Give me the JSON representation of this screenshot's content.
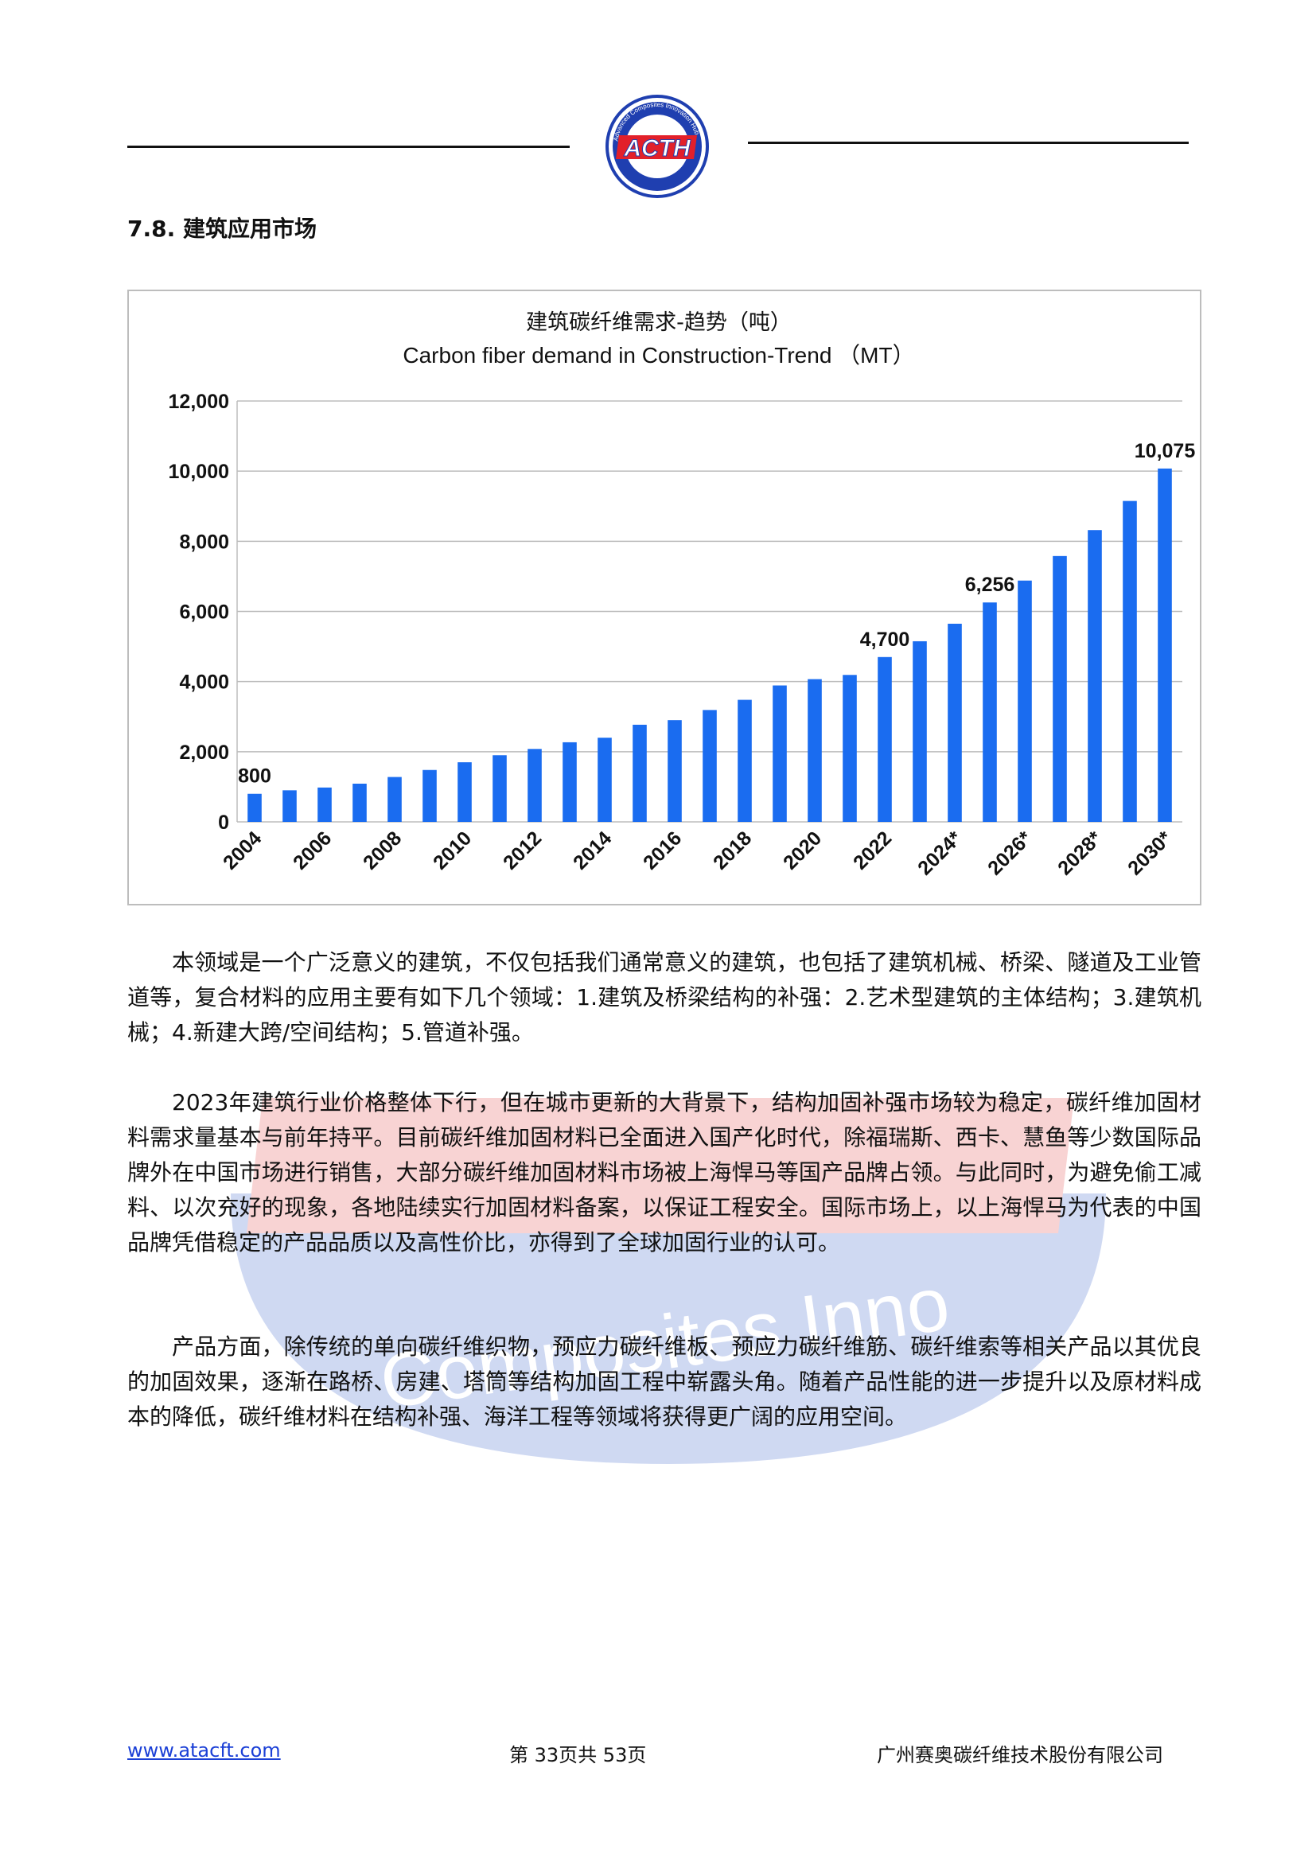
{
  "header": {
    "logo_text": "ACTH",
    "logo_ring_text": "Advanced Composites Innovation Hub",
    "watermark_text": "Composites Inno"
  },
  "section": {
    "title": "7.8.  建筑应用市场"
  },
  "chart_data": {
    "type": "bar",
    "title": "建筑碳纤维需求-趋势（吨）",
    "subtitle": "Carbon fiber demand in Construction-Trend  （MT）",
    "x": [
      "2004",
      "2005",
      "2006",
      "2007",
      "2008",
      "2009",
      "2010",
      "2011",
      "2012",
      "2013",
      "2014",
      "2015",
      "2016",
      "2017",
      "2018",
      "2019",
      "2020",
      "2021",
      "2022",
      "2023",
      "2024*",
      "2025*",
      "2026*",
      "2027*",
      "2028*",
      "2029*",
      "2030*"
    ],
    "x_tick_labels": [
      "2004",
      "2006",
      "2008",
      "2010",
      "2012",
      "2014",
      "2016",
      "2018",
      "2020",
      "2022",
      "2024*",
      "2026*",
      "2028*",
      "2030*"
    ],
    "values": [
      800,
      900,
      980,
      1090,
      1280,
      1480,
      1700,
      1900,
      2080,
      2270,
      2400,
      2770,
      2900,
      3190,
      3480,
      3890,
      4070,
      4190,
      4700,
      5150,
      5650,
      6256,
      6880,
      7580,
      8320,
      9150,
      10075
    ],
    "data_labels": [
      {
        "x": "2004",
        "text": "800"
      },
      {
        "x": "2022",
        "text": "4,700"
      },
      {
        "x": "2025*",
        "text": "6,256"
      },
      {
        "x": "2030*",
        "text": "10,075"
      }
    ],
    "y_ticks": [
      "0",
      "2,000",
      "4,000",
      "6,000",
      "8,000",
      "10,000",
      "12,000"
    ],
    "ylim": [
      0,
      12000
    ],
    "grid": true,
    "legend": "none",
    "bar_color": "#1a6cf0",
    "xlabel": "",
    "ylabel": ""
  },
  "paragraphs": [
    "本领域是一个广泛意义的建筑，不仅包括我们通常意义的建筑，也包括了建筑机械、桥梁、隧道及工业管道等，复合材料的应用主要有如下几个领域：1.建筑及桥梁结构的补强：2.艺术型建筑的主体结构；3.建筑机械；4.新建大跨/空间结构；5.管道补强。",
    "2023年建筑行业价格整体下行，但在城市更新的大背景下，结构加固补强市场较为稳定，碳纤维加固材料需求量基本与前年持平。目前碳纤维加固材料已全面进入国产化时代，除福瑞斯、西卡、慧鱼等少数国际品牌外在中国市场进行销售，大部分碳纤维加固材料市场被上海悍马等国产品牌占领。与此同时，为避免偷工减料、以次充好的现象，各地陆续实行加固材料备案，以保证工程安全。国际市场上，以上海悍马为代表的中国品牌凭借稳定的产品品质以及高性价比，亦得到了全球加固行业的认可。",
    "产品方面，除传统的单向碳纤维织物，预应力碳纤维板、预应力碳纤维筋、碳纤维索等相关产品以其优良的加固效果，逐渐在路桥、房建、塔筒等结构加固工程中崭露头角。随着产品性能的进一步提升以及原材料成本的降低，碳纤维材料在结构补强、海洋工程等领域将获得更广阔的应用空间。"
  ],
  "footer": {
    "website": "www.atacft.com",
    "page": "第 33页共 53页",
    "company": "广州赛奥碳纤维技术股份有限公司"
  },
  "colors": {
    "brand_blue": "#1f3fb0",
    "brand_red": "#e2202a",
    "bar": "#1a6cf0"
  }
}
